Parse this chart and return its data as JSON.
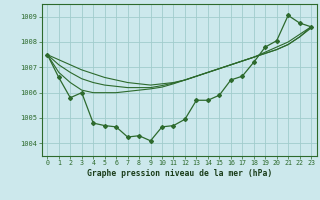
{
  "x": [
    0,
    1,
    2,
    3,
    4,
    5,
    6,
    7,
    8,
    9,
    10,
    11,
    12,
    13,
    14,
    15,
    16,
    17,
    18,
    19,
    20,
    21,
    22,
    23
  ],
  "y_main": [
    1007.5,
    1006.6,
    1005.8,
    1006.0,
    1004.8,
    1004.7,
    1004.65,
    1004.25,
    1004.3,
    1004.1,
    1004.65,
    1004.7,
    1004.95,
    1005.7,
    1005.7,
    1005.9,
    1006.5,
    1006.65,
    1007.2,
    1007.8,
    1008.05,
    1009.05,
    1008.75,
    1008.6
  ],
  "y_line1": [
    1007.5,
    1007.3,
    1007.1,
    1006.9,
    1006.75,
    1006.6,
    1006.5,
    1006.4,
    1006.35,
    1006.3,
    1006.35,
    1006.4,
    1006.5,
    1006.65,
    1006.8,
    1006.95,
    1007.1,
    1007.25,
    1007.4,
    1007.6,
    1007.8,
    1008.0,
    1008.3,
    1008.6
  ],
  "y_line2": [
    1007.5,
    1007.1,
    1006.8,
    1006.55,
    1006.4,
    1006.3,
    1006.25,
    1006.2,
    1006.2,
    1006.2,
    1006.28,
    1006.38,
    1006.5,
    1006.65,
    1006.8,
    1006.95,
    1007.1,
    1007.25,
    1007.4,
    1007.55,
    1007.7,
    1007.9,
    1008.2,
    1008.6
  ],
  "y_line3": [
    1007.5,
    1006.8,
    1006.4,
    1006.1,
    1006.0,
    1006.0,
    1006.0,
    1006.05,
    1006.1,
    1006.15,
    1006.22,
    1006.35,
    1006.5,
    1006.65,
    1006.8,
    1006.95,
    1007.1,
    1007.25,
    1007.4,
    1007.55,
    1007.7,
    1007.9,
    1008.2,
    1008.55
  ],
  "color": "#2d6a2d",
  "bg_color": "#cce8ec",
  "grid_color": "#a0cccc",
  "ylim": [
    1003.5,
    1009.5
  ],
  "xlim": [
    -0.5,
    23.5
  ],
  "xlabel": "Graphe pression niveau de la mer (hPa)",
  "yticks": [
    1004,
    1005,
    1006,
    1007,
    1008,
    1009
  ],
  "xticks": [
    0,
    1,
    2,
    3,
    4,
    5,
    6,
    7,
    8,
    9,
    10,
    11,
    12,
    13,
    14,
    15,
    16,
    17,
    18,
    19,
    20,
    21,
    22,
    23
  ]
}
